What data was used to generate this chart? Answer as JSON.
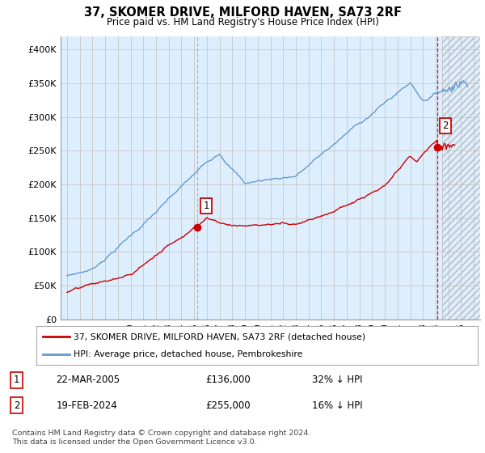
{
  "title": "37, SKOMER DRIVE, MILFORD HAVEN, SA73 2RF",
  "subtitle": "Price paid vs. HM Land Registry's House Price Index (HPI)",
  "ylabel_ticks": [
    "£0",
    "£50K",
    "£100K",
    "£150K",
    "£200K",
    "£250K",
    "£300K",
    "£350K",
    "£400K"
  ],
  "ytick_values": [
    0,
    50000,
    100000,
    150000,
    200000,
    250000,
    300000,
    350000,
    400000
  ],
  "ylim": [
    0,
    420000
  ],
  "xlim_start": 1994.5,
  "xlim_end": 2027.5,
  "sale1_x": 2005.22,
  "sale1_y": 136000,
  "sale1_label": "1",
  "sale2_x": 2024.12,
  "sale2_y": 255000,
  "sale2_label": "2",
  "hpi_color": "#6699cc",
  "price_color": "#cc0000",
  "plot_bg_color": "#ddeeff",
  "sale_marker_color": "#cc0000",
  "vline1_color": "#aaaaaa",
  "vline2_color": "#cc0000",
  "legend_line1": "37, SKOMER DRIVE, MILFORD HAVEN, SA73 2RF (detached house)",
  "legend_line2": "HPI: Average price, detached house, Pembrokeshire",
  "table_row1": [
    "1",
    "22-MAR-2005",
    "£136,000",
    "32% ↓ HPI"
  ],
  "table_row2": [
    "2",
    "19-FEB-2024",
    "£255,000",
    "16% ↓ HPI"
  ],
  "footnote1": "Contains HM Land Registry data © Crown copyright and database right 2024.",
  "footnote2": "This data is licensed under the Open Government Licence v3.0.",
  "background_color": "#ffffff",
  "grid_color": "#cccccc",
  "hatch_region_start": 2024.5
}
